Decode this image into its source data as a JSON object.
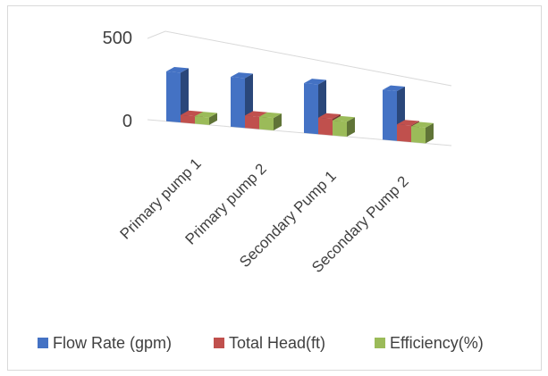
{
  "chart_data": {
    "type": "bar",
    "variant": "3d-clustered-column",
    "categories": [
      "Primary pump 1",
      "Primary pump 2",
      "Secondary Pump 1",
      "Secondary Pump 2"
    ],
    "series": [
      {
        "name": "Flow Rate (gpm)",
        "color": "#4472C4",
        "values": [
          300,
          300,
          300,
          300
        ]
      },
      {
        "name": "Total Head(ft)",
        "color": "#C0504D",
        "values": [
          45,
          75,
          100,
          100
        ]
      },
      {
        "name": "Efficiency(%)",
        "color": "#9BBB59",
        "values": [
          45,
          75,
          90,
          95
        ]
      }
    ],
    "title": "",
    "xlabel": "",
    "ylabel": "",
    "ylim": [
      0,
      500
    ],
    "yticks": [
      "500",
      "0"
    ],
    "grid": true,
    "legend_position": "bottom"
  }
}
